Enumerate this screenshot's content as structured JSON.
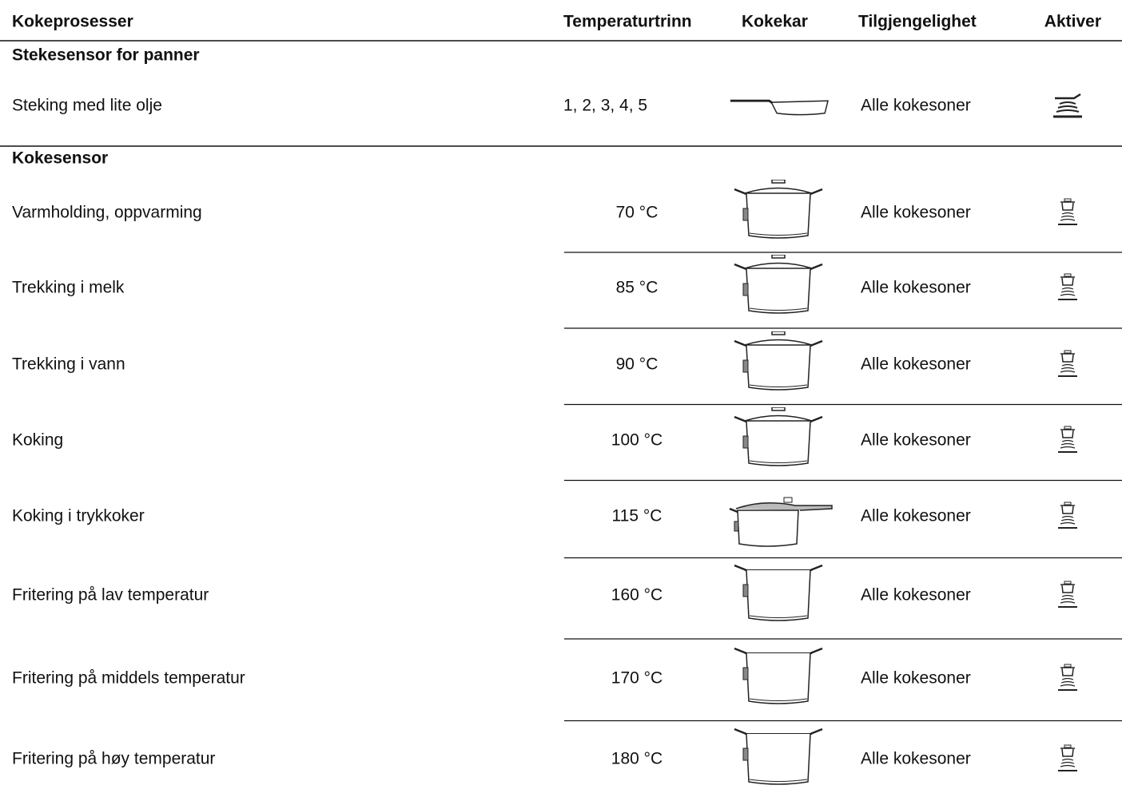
{
  "header": {
    "columns": [
      "Kokeprosesser",
      "Temperaturtrinn",
      "Kokekar",
      "Tilgjengelighet",
      "Aktiver"
    ]
  },
  "sections": [
    {
      "title": "Stekesensor for panner",
      "rows": [
        {
          "process": "Steking med lite olje",
          "temperature": "1, 2, 3, 4, 5",
          "availability": "Alle kokesoner"
        }
      ]
    },
    {
      "title": "Kokesensor",
      "rows": [
        {
          "process": "Varmholding, oppvarming",
          "temperature": "70 °C",
          "availability": "Alle kokesoner"
        },
        {
          "process": "Trekking i melk",
          "temperature": "85 °C",
          "availability": "Alle kokesoner"
        },
        {
          "process": "Trekking i vann",
          "temperature": "90 °C",
          "availability": "Alle kokesoner"
        },
        {
          "process": "Koking",
          "temperature": "100 °C",
          "availability": "Alle kokesoner"
        },
        {
          "process": "Koking i trykkoker",
          "temperature": "115 °C",
          "availability": "Alle kokesoner"
        },
        {
          "process": "Fritering på lav temperatur",
          "temperature": "160 °C",
          "availability": "Alle kokesoner"
        },
        {
          "process": "Fritering på middels temperatur",
          "temperature": "170 °C",
          "availability": "Alle kokesoner"
        },
        {
          "process": "Fritering på høy temperatur",
          "temperature": "180 °C",
          "availability": "Alle kokesoner"
        }
      ]
    }
  ]
}
